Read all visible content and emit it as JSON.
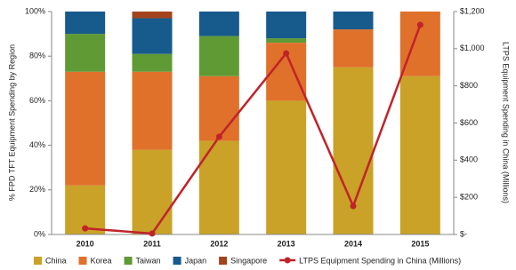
{
  "chart_data": {
    "type": "bar",
    "stacked": true,
    "categories": [
      "2010",
      "2011",
      "2012",
      "2013",
      "2014",
      "2015"
    ],
    "y_label": "% FPD  TFT Equipment  Spending by Region",
    "y2_label": "LTPS Equipment Spending in China (Millions)",
    "ylim": [
      0,
      100
    ],
    "yticks": [
      {
        "value": 0,
        "label": "0%"
      },
      {
        "value": 20,
        "label": "20%"
      },
      {
        "value": 40,
        "label": "40%"
      },
      {
        "value": 60,
        "label": "60%"
      },
      {
        "value": 80,
        "label": "80%"
      },
      {
        "value": 100,
        "label": "100%"
      }
    ],
    "y2lim": [
      0,
      1200
    ],
    "y2ticks": [
      {
        "value": 0,
        "label": "$-"
      },
      {
        "value": 200,
        "label": "$200"
      },
      {
        "value": 400,
        "label": "$400"
      },
      {
        "value": 600,
        "label": "$600"
      },
      {
        "value": 800,
        "label": "$800"
      },
      {
        "value": 1000,
        "label": "$1,000"
      },
      {
        "value": 1200,
        "label": "$1,200"
      }
    ],
    "legend": "bottom",
    "series": [
      {
        "name": "China",
        "type": "bar",
        "color": "#c9a227",
        "values": [
          22,
          38,
          42,
          60,
          75,
          71
        ]
      },
      {
        "name": "Korea",
        "type": "bar",
        "color": "#e0712b",
        "values": [
          51,
          35,
          29,
          26,
          17,
          29
        ]
      },
      {
        "name": "Taiwan",
        "type": "bar",
        "color": "#5f9a35",
        "values": [
          17,
          8,
          18,
          2,
          0,
          0
        ]
      },
      {
        "name": "Japan",
        "type": "bar",
        "color": "#175a8c",
        "values": [
          10,
          16,
          11,
          12,
          8,
          0
        ]
      },
      {
        "name": "Singapore",
        "type": "bar",
        "color": "#a3441c",
        "values": [
          0,
          3,
          0,
          0,
          0,
          0
        ]
      },
      {
        "name": "LTPS Equipment Spending in China (Millions)",
        "type": "line",
        "axis": "y2",
        "color": "#c0232b",
        "values": [
          33,
          5,
          526,
          975,
          153,
          1128
        ]
      }
    ]
  }
}
